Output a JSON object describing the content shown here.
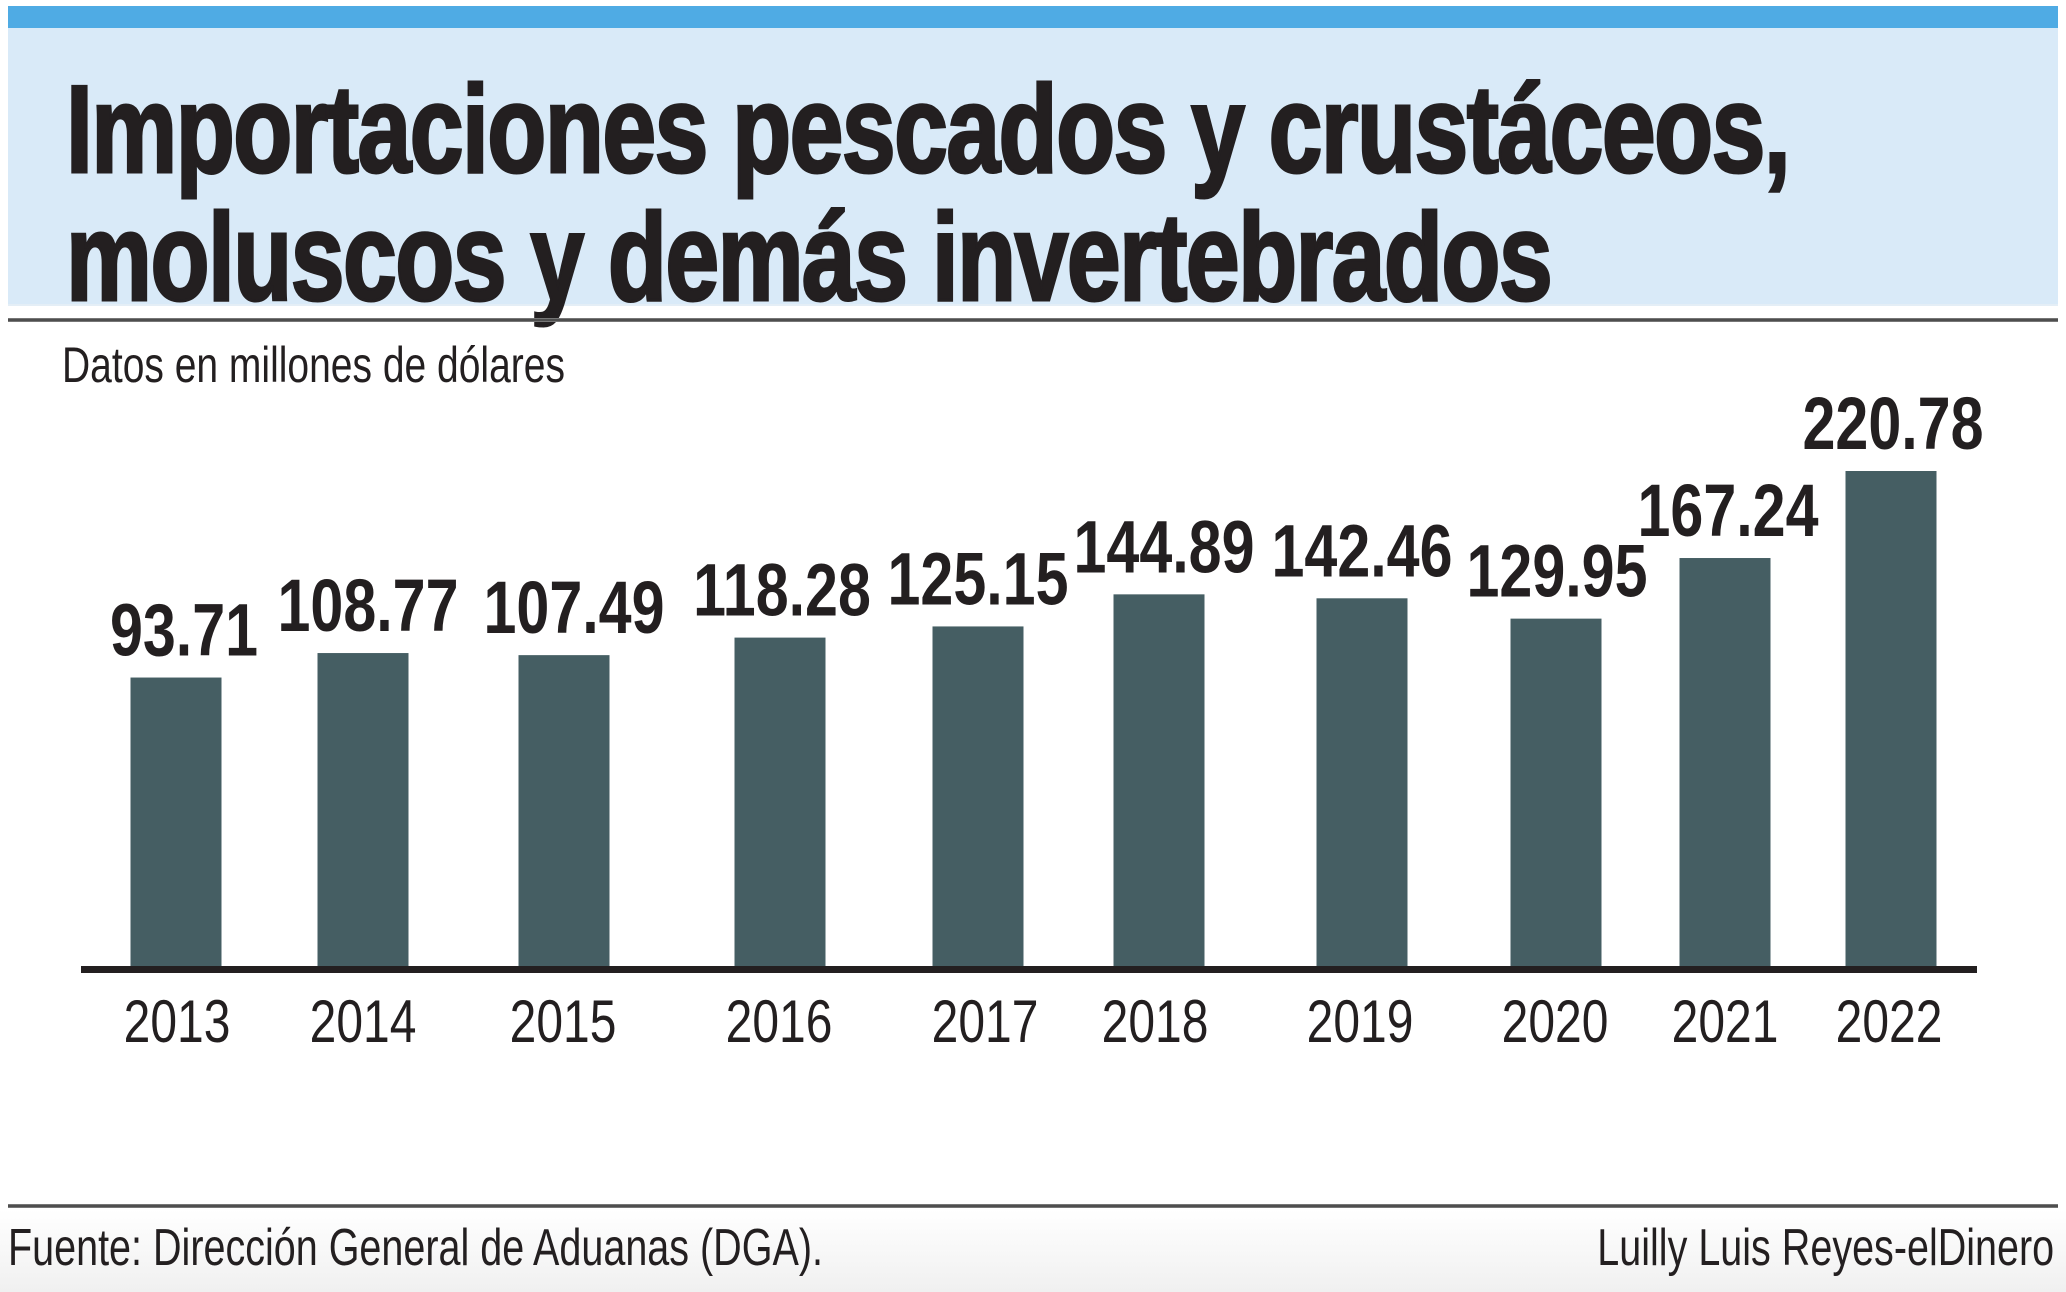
{
  "header": {
    "title_line1": "Importaciones pescados y crustáceos,",
    "title_line2": "moluscos y demás invertebrados",
    "accent_color": "#4fabe4",
    "panel_color": "#d9eaf8"
  },
  "subtitle": "Datos en millones de dólares",
  "footer": {
    "source": "Fuente: Dirección General de Aduanas (DGA).",
    "credit": "Luilly Luis Reyes-elDinero"
  },
  "chart_data": {
    "type": "bar",
    "title": "Importaciones pescados y crustáceos, moluscos y demás invertebrados",
    "subtitle": "Datos en millones de dólares",
    "xlabel": "",
    "ylabel": "",
    "categories": [
      "2013",
      "2014",
      "2015",
      "2016",
      "2017",
      "2018",
      "2019",
      "2020",
      "2021",
      "2022"
    ],
    "values": [
      93.71,
      108.77,
      107.49,
      118.28,
      125.15,
      144.89,
      142.46,
      129.95,
      167.24,
      220.78
    ],
    "value_labels": [
      "93.71",
      "108.77",
      "107.49",
      "118.28",
      "125.15",
      "144.89",
      "142.46",
      "129.95",
      "167.24",
      "220.78"
    ],
    "ylim": [
      -85,
      220.78
    ],
    "grid": false,
    "legend": "none",
    "bar_color": "#455e63",
    "axis_color": "#231f20"
  }
}
